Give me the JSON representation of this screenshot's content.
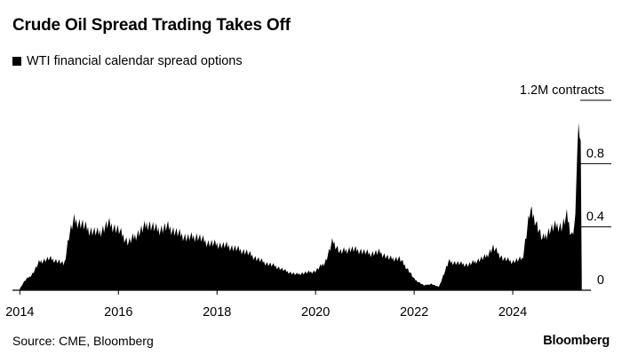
{
  "header": {
    "title": "Crude Oil Spread Trading Takes Off",
    "legend_label": "WTI financial calendar spread options"
  },
  "footer": {
    "source": "Source: CME, Bloomberg",
    "brand": "Bloomberg"
  },
  "colors": {
    "series": "#000000",
    "axis": "#000000",
    "background": "#ffffff"
  },
  "chart_data": {
    "type": "area",
    "title": "Crude Oil Spread Trading Takes Off",
    "series": [
      {
        "name": "WTI financial calendar spread options",
        "x": [
          2014.0,
          2014.1,
          2014.25,
          2014.4,
          2014.6,
          2014.8,
          2014.9,
          2015.0,
          2015.1,
          2015.25,
          2015.4,
          2015.6,
          2015.8,
          2016.0,
          2016.2,
          2016.4,
          2016.6,
          2016.8,
          2017.0,
          2017.2,
          2017.4,
          2017.6,
          2017.8,
          2018.0,
          2018.2,
          2018.4,
          2018.6,
          2018.8,
          2019.0,
          2019.2,
          2019.4,
          2019.6,
          2019.8,
          2020.0,
          2020.2,
          2020.35,
          2020.5,
          2020.7,
          2020.9,
          2021.1,
          2021.3,
          2021.5,
          2021.7,
          2021.9,
          2022.0,
          2022.2,
          2022.35,
          2022.5,
          2022.7,
          2022.9,
          2023.1,
          2023.3,
          2023.45,
          2023.6,
          2023.8,
          2024.0,
          2024.2,
          2024.35,
          2024.45,
          2024.6,
          2024.75,
          2024.9,
          2025.0,
          2025.1,
          2025.2,
          2025.27,
          2025.3,
          2025.33,
          2025.36,
          2025.38,
          2025.4
        ],
        "values": [
          0.01,
          0.06,
          0.1,
          0.18,
          0.2,
          0.18,
          0.16,
          0.35,
          0.44,
          0.42,
          0.38,
          0.36,
          0.42,
          0.38,
          0.3,
          0.36,
          0.42,
          0.38,
          0.4,
          0.36,
          0.33,
          0.34,
          0.3,
          0.29,
          0.28,
          0.26,
          0.24,
          0.2,
          0.17,
          0.15,
          0.12,
          0.1,
          0.11,
          0.12,
          0.18,
          0.31,
          0.24,
          0.26,
          0.25,
          0.23,
          0.24,
          0.2,
          0.2,
          0.12,
          0.07,
          0.03,
          0.04,
          0.02,
          0.18,
          0.17,
          0.16,
          0.19,
          0.21,
          0.27,
          0.2,
          0.18,
          0.2,
          0.5,
          0.45,
          0.32,
          0.38,
          0.41,
          0.4,
          0.47,
          0.34,
          0.44,
          0.85,
          0.95,
          1.01,
          0.9,
          0.08
        ]
      }
    ],
    "x_ticks": [
      "2014",
      "2016",
      "2018",
      "2020",
      "2022",
      "2024"
    ],
    "y_ticks": [
      {
        "value": 0,
        "label": "0"
      },
      {
        "value": 0.4,
        "label": "0.4"
      },
      {
        "value": 0.8,
        "label": "0.8"
      },
      {
        "value": 1.2,
        "label": "1.2M contracts"
      }
    ],
    "xlim": [
      2013.85,
      2026.0
    ],
    "ylim": [
      0,
      1.2
    ],
    "grid": false,
    "legend_position": "top-left"
  }
}
